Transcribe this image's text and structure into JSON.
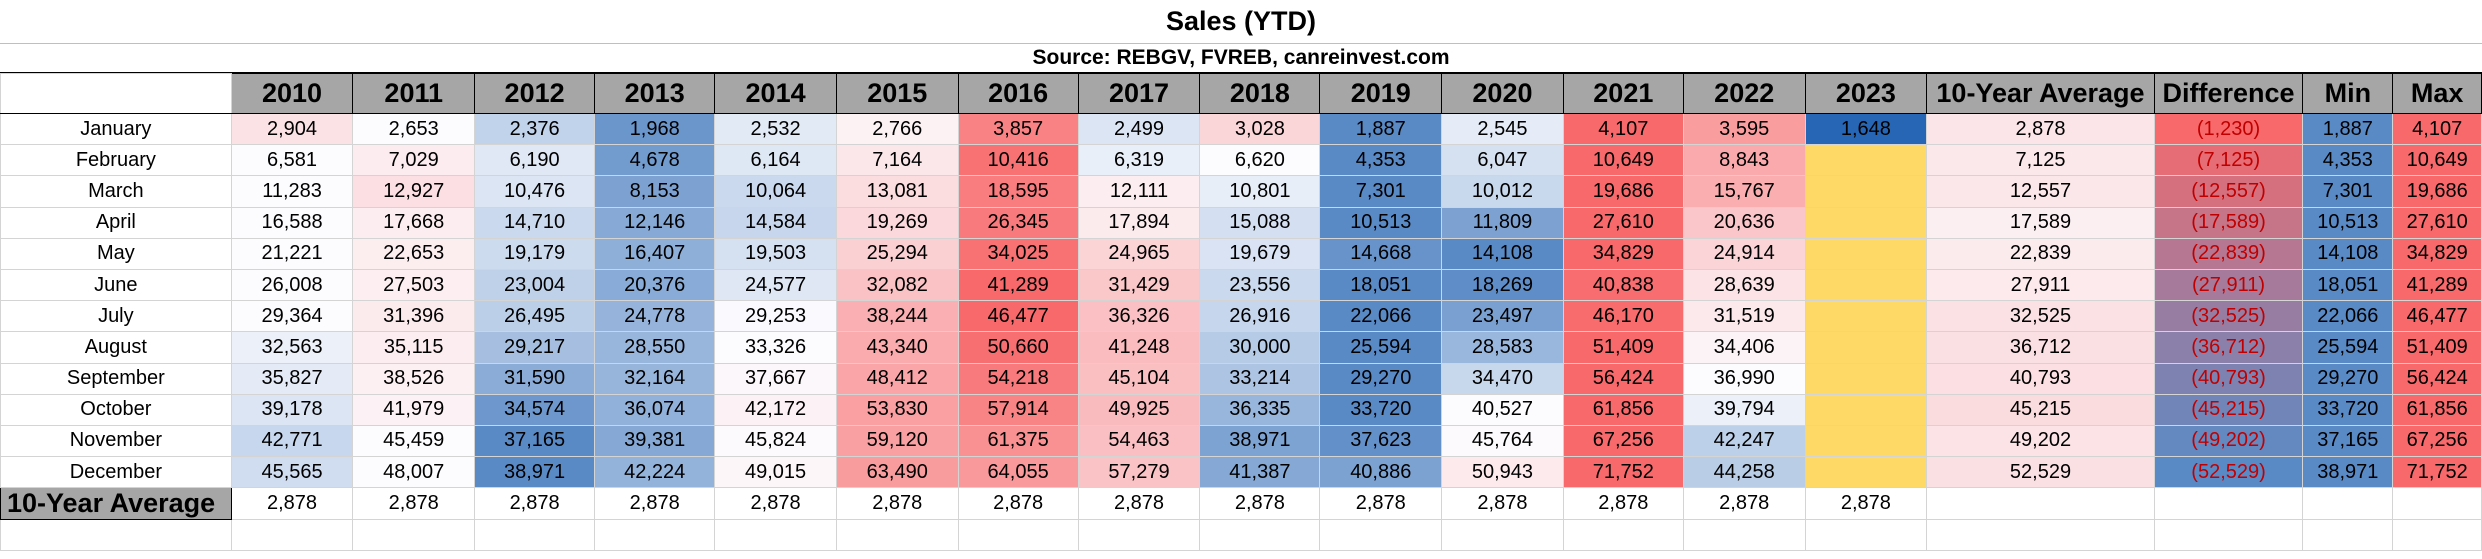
{
  "title": "Sales (YTD)",
  "source": "Source: REBGV, FVREB, canreinvest.com",
  "headers": [
    "2010",
    "2011",
    "2012",
    "2013",
    "2014",
    "2015",
    "2016",
    "2017",
    "2018",
    "2019",
    "2020",
    "2021",
    "2022",
    "2023",
    "10-Year Average",
    "Difference",
    "Min",
    "Max"
  ],
  "rows": [
    {
      "month": "January",
      "values": [
        "2,904",
        "2,653",
        "2,376",
        "1,968",
        "2,532",
        "2,766",
        "3,857",
        "2,499",
        "3,028",
        "1,887",
        "2,545",
        "4,107",
        "3,595",
        "1,648",
        "2,878",
        "(1,230)",
        "1,887",
        "4,107"
      ]
    },
    {
      "month": "February",
      "values": [
        "6,581",
        "7,029",
        "6,190",
        "4,678",
        "6,164",
        "7,164",
        "10,416",
        "6,319",
        "6,620",
        "4,353",
        "6,047",
        "10,649",
        "8,843",
        "",
        "7,125",
        "(7,125)",
        "4,353",
        "10,649"
      ]
    },
    {
      "month": "March",
      "values": [
        "11,283",
        "12,927",
        "10,476",
        "8,153",
        "10,064",
        "13,081",
        "18,595",
        "12,111",
        "10,801",
        "7,301",
        "10,012",
        "19,686",
        "15,767",
        "",
        "12,557",
        "(12,557)",
        "7,301",
        "19,686"
      ]
    },
    {
      "month": "April",
      "values": [
        "16,588",
        "17,668",
        "14,710",
        "12,146",
        "14,584",
        "19,269",
        "26,345",
        "17,894",
        "15,088",
        "10,513",
        "11,809",
        "27,610",
        "20,636",
        "",
        "17,589",
        "(17,589)",
        "10,513",
        "27,610"
      ]
    },
    {
      "month": "May",
      "values": [
        "21,221",
        "22,653",
        "19,179",
        "16,407",
        "19,503",
        "25,294",
        "34,025",
        "24,965",
        "19,679",
        "14,668",
        "14,108",
        "34,829",
        "24,914",
        "",
        "22,839",
        "(22,839)",
        "14,108",
        "34,829"
      ]
    },
    {
      "month": "June",
      "values": [
        "26,008",
        "27,503",
        "23,004",
        "20,376",
        "24,577",
        "32,082",
        "41,289",
        "31,429",
        "23,556",
        "18,051",
        "18,269",
        "40,838",
        "28,639",
        "",
        "27,911",
        "(27,911)",
        "18,051",
        "41,289"
      ]
    },
    {
      "month": "July",
      "values": [
        "29,364",
        "31,396",
        "26,495",
        "24,778",
        "29,253",
        "38,244",
        "46,477",
        "36,326",
        "26,916",
        "22,066",
        "23,497",
        "46,170",
        "31,519",
        "",
        "32,525",
        "(32,525)",
        "22,066",
        "46,477"
      ]
    },
    {
      "month": "August",
      "values": [
        "32,563",
        "35,115",
        "29,217",
        "28,550",
        "33,326",
        "43,340",
        "50,660",
        "41,248",
        "30,000",
        "25,594",
        "28,583",
        "51,409",
        "34,406",
        "",
        "36,712",
        "(36,712)",
        "25,594",
        "51,409"
      ]
    },
    {
      "month": "September",
      "values": [
        "35,827",
        "38,526",
        "31,590",
        "32,164",
        "37,667",
        "48,412",
        "54,218",
        "45,104",
        "33,214",
        "29,270",
        "34,470",
        "56,424",
        "36,990",
        "",
        "40,793",
        "(40,793)",
        "29,270",
        "56,424"
      ]
    },
    {
      "month": "October",
      "values": [
        "39,178",
        "41,979",
        "34,574",
        "36,074",
        "42,172",
        "53,830",
        "57,914",
        "49,925",
        "36,335",
        "33,720",
        "40,527",
        "61,856",
        "39,794",
        "",
        "45,215",
        "(45,215)",
        "33,720",
        "61,856"
      ]
    },
    {
      "month": "November",
      "values": [
        "42,771",
        "45,459",
        "37,165",
        "39,381",
        "45,824",
        "59,120",
        "61,375",
        "54,463",
        "38,971",
        "37,623",
        "45,764",
        "67,256",
        "42,247",
        "",
        "49,202",
        "(49,202)",
        "37,165",
        "67,256"
      ]
    },
    {
      "month": "December",
      "values": [
        "45,565",
        "48,007",
        "38,971",
        "42,224",
        "49,015",
        "63,490",
        "64,055",
        "57,279",
        "41,387",
        "40,886",
        "50,943",
        "71,752",
        "44,258",
        "",
        "52,529",
        "(52,529)",
        "38,971",
        "71,752"
      ]
    }
  ],
  "average_row": {
    "label": "10-Year Average",
    "values": [
      "2,878",
      "2,878",
      "2,878",
      "2,878",
      "2,878",
      "2,878",
      "2,878",
      "2,878",
      "2,878",
      "2,878",
      "2,878",
      "2,878",
      "2,878",
      "2,878",
      "",
      "",
      "",
      ""
    ]
  },
  "colors": {
    "header_fill": "#a6a6a6",
    "blue_dark": "#5a8ac6",
    "neutral": "#fcfcff",
    "red_dark": "#f8696b",
    "yellow_2023": "#ffd966",
    "negative_text": "#c00000"
  }
}
